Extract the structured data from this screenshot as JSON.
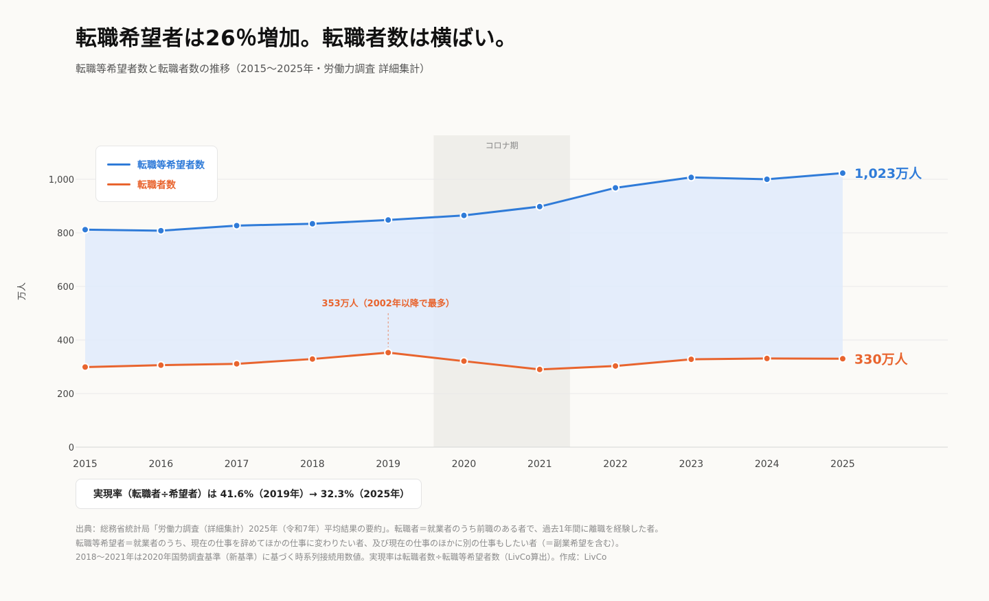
{
  "title": "転職希望者は26％増加。転職者数は横ばい。",
  "subtitle": "転職等希望者数と転職者数の推移（2015〜2025年・労働力調査 詳細集計）",
  "rate_box": "実現率（転職者÷希望者）は 41.6%（2019年）→ 32.3%（2025年）",
  "footnotes": [
    "出典：総務省統計局「労働力調査（詳細集計）2025年（令和7年）平均結果の要約」。転職者＝就業者のうち前職のある者で、過去1年間に離職を経験した者。",
    "転職等希望者＝就業者のうち、現在の仕事を辞めてほかの仕事に変わりたい者、及び現在の仕事のほかに別の仕事もしたい者（＝副業希望を含む）。",
    "2018〜2021年は2020年国勢調査基準（新基準）に基づく時系列接続用数値。実現率は転職者数÷転職等希望者数（LivCo算出）。作成：LivCo"
  ],
  "colors": {
    "blue": "#2f7bd8",
    "orange": "#e8642e",
    "fill": "#dfeafb",
    "band": "#efeeea"
  },
  "chart_data": {
    "type": "line",
    "categories": [
      "2015",
      "2016",
      "2017",
      "2018",
      "2019",
      "2020",
      "2021",
      "2022",
      "2023",
      "2024",
      "2025"
    ],
    "series": [
      {
        "name": "転職等希望者数",
        "color": "#2f7bd8",
        "values": [
          812,
          808,
          827,
          834,
          848,
          865,
          898,
          968,
          1007,
          1000,
          1023
        ],
        "end_label": "1,023万人",
        "area_fill": true
      },
      {
        "name": "転職者数",
        "color": "#e8642e",
        "values": [
          299,
          306,
          311,
          329,
          353,
          321,
          290,
          303,
          328,
          331,
          330
        ],
        "end_label": "330万人"
      }
    ],
    "ylabel": "万人",
    "ylim": [
      0,
      1100
    ],
    "yticks": [
      0,
      200,
      400,
      600,
      800,
      1000
    ],
    "ytick_labels": [
      "0",
      "200",
      "400",
      "600",
      "800",
      "1,000"
    ],
    "shaded_region": {
      "label": "コロナ期",
      "from": 2019.6,
      "to": 2021.4
    },
    "annotation": {
      "text": "353万人（2002年以降で最多）",
      "series": 1,
      "index": 4
    },
    "grid": true,
    "legend": "top-left"
  }
}
